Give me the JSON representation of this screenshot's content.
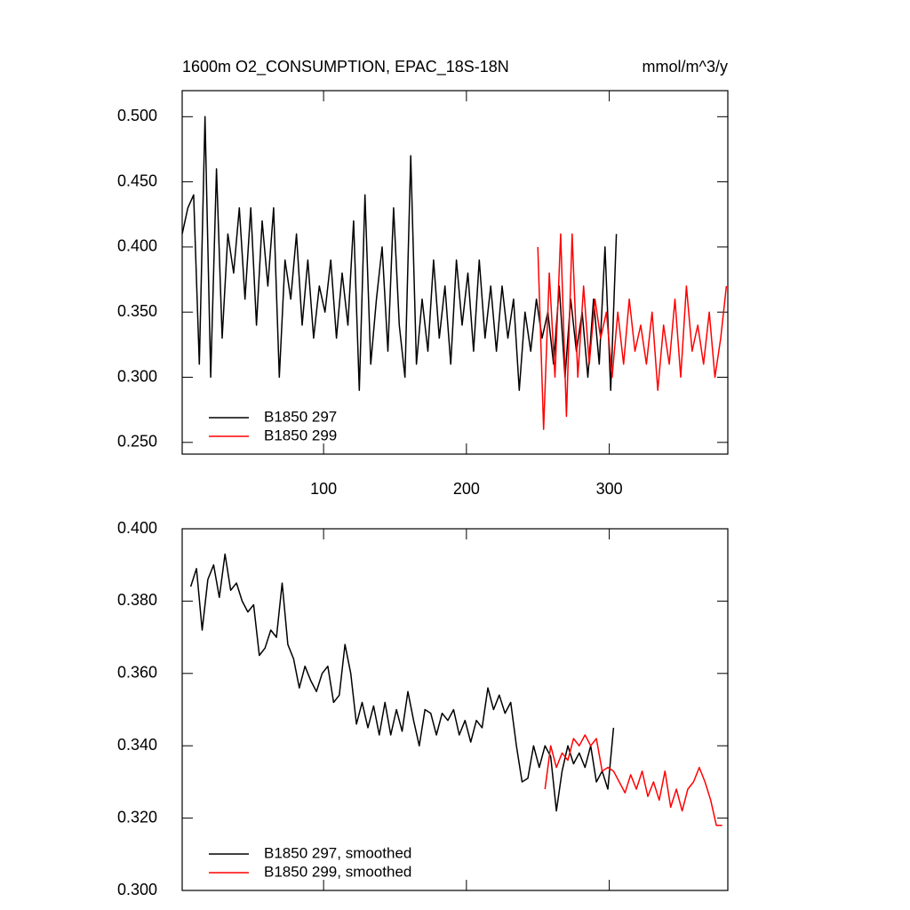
{
  "chart_data": [
    {
      "type": "line",
      "title": "1600m O2_CONSUMPTION, EPAC_18S-18N",
      "units": "mmol/m^3/y",
      "xlim": [
        1,
        383
      ],
      "xticks": [
        100,
        200,
        300
      ],
      "ylim": [
        0.241,
        0.52
      ],
      "yticks": [
        {
          "value": 0.25,
          "label": "0.250"
        },
        {
          "value": 0.3,
          "label": "0.300"
        },
        {
          "value": 0.35,
          "label": "0.350"
        },
        {
          "value": 0.4,
          "label": "0.400"
        },
        {
          "value": 0.45,
          "label": "0.450"
        },
        {
          "value": 0.5,
          "label": "0.500"
        }
      ],
      "legend": "lower left",
      "series": [
        {
          "name": "B1850 297",
          "color": "#000000",
          "x": [
            1,
            5,
            9,
            13,
            17,
            21,
            25,
            29,
            33,
            37,
            41,
            45,
            49,
            53,
            57,
            61,
            65,
            69,
            73,
            77,
            81,
            85,
            89,
            93,
            97,
            101,
            105,
            109,
            113,
            117,
            121,
            125,
            129,
            133,
            137,
            141,
            145,
            149,
            153,
            157,
            161,
            165,
            169,
            173,
            177,
            181,
            185,
            189,
            193,
            197,
            201,
            205,
            209,
            213,
            217,
            221,
            225,
            229,
            233,
            237,
            241,
            245,
            249,
            253,
            257,
            261,
            265,
            269,
            273,
            277,
            281,
            285,
            289,
            293,
            297,
            301,
            305
          ],
          "values": [
            0.41,
            0.43,
            0.44,
            0.31,
            0.5,
            0.3,
            0.46,
            0.33,
            0.41,
            0.38,
            0.43,
            0.36,
            0.43,
            0.34,
            0.42,
            0.37,
            0.43,
            0.3,
            0.39,
            0.36,
            0.41,
            0.34,
            0.39,
            0.33,
            0.37,
            0.35,
            0.39,
            0.33,
            0.38,
            0.34,
            0.42,
            0.29,
            0.44,
            0.31,
            0.36,
            0.4,
            0.32,
            0.43,
            0.34,
            0.3,
            0.47,
            0.31,
            0.36,
            0.32,
            0.39,
            0.33,
            0.37,
            0.31,
            0.39,
            0.34,
            0.38,
            0.32,
            0.39,
            0.33,
            0.37,
            0.32,
            0.37,
            0.33,
            0.36,
            0.29,
            0.35,
            0.32,
            0.36,
            0.33,
            0.35,
            0.31,
            0.37,
            0.3,
            0.36,
            0.32,
            0.35,
            0.3,
            0.36,
            0.31,
            0.4,
            0.29,
            0.41
          ]
        },
        {
          "name": "B1850 299",
          "color": "#ff0000",
          "x": [
            250,
            254,
            258,
            262,
            266,
            270,
            274,
            278,
            282,
            286,
            290,
            294,
            298,
            302,
            306,
            310,
            314,
            318,
            322,
            326,
            330,
            334,
            338,
            342,
            346,
            350,
            354,
            358,
            362,
            366,
            370,
            374,
            378,
            382
          ],
          "values": [
            0.4,
            0.26,
            0.38,
            0.3,
            0.41,
            0.27,
            0.41,
            0.3,
            0.37,
            0.31,
            0.36,
            0.33,
            0.35,
            0.3,
            0.35,
            0.31,
            0.36,
            0.32,
            0.34,
            0.31,
            0.35,
            0.29,
            0.34,
            0.31,
            0.36,
            0.3,
            0.37,
            0.32,
            0.34,
            0.31,
            0.35,
            0.3,
            0.33,
            0.37
          ]
        }
      ]
    },
    {
      "type": "line",
      "xlim": [
        1,
        383
      ],
      "xticks": [
        100,
        200,
        300
      ],
      "ylim": [
        0.3,
        0.4
      ],
      "yticks": [
        {
          "value": 0.3,
          "label": "0.300"
        },
        {
          "value": 0.32,
          "label": "0.320"
        },
        {
          "value": 0.34,
          "label": "0.340"
        },
        {
          "value": 0.36,
          "label": "0.360"
        },
        {
          "value": 0.38,
          "label": "0.380"
        },
        {
          "value": 0.4,
          "label": "0.400"
        }
      ],
      "legend": "lower left",
      "series": [
        {
          "name": "B1850 297, smoothed",
          "color": "#000000",
          "x": [
            7,
            11,
            15,
            19,
            23,
            27,
            31,
            35,
            39,
            43,
            47,
            51,
            55,
            59,
            63,
            67,
            71,
            75,
            79,
            83,
            87,
            91,
            95,
            99,
            103,
            107,
            111,
            115,
            119,
            123,
            127,
            131,
            135,
            139,
            143,
            147,
            151,
            155,
            159,
            163,
            167,
            171,
            175,
            179,
            183,
            187,
            191,
            195,
            199,
            203,
            207,
            211,
            215,
            219,
            223,
            227,
            231,
            235,
            239,
            243,
            247,
            251,
            255,
            259,
            263,
            267,
            271,
            275,
            279,
            283,
            287,
            291,
            295,
            299,
            303
          ],
          "values": [
            0.384,
            0.389,
            0.372,
            0.386,
            0.39,
            0.381,
            0.393,
            0.383,
            0.385,
            0.38,
            0.377,
            0.379,
            0.365,
            0.367,
            0.372,
            0.37,
            0.385,
            0.368,
            0.364,
            0.356,
            0.362,
            0.358,
            0.355,
            0.36,
            0.362,
            0.352,
            0.354,
            0.368,
            0.36,
            0.346,
            0.352,
            0.345,
            0.351,
            0.343,
            0.352,
            0.343,
            0.35,
            0.344,
            0.355,
            0.347,
            0.34,
            0.35,
            0.349,
            0.343,
            0.349,
            0.347,
            0.35,
            0.343,
            0.347,
            0.341,
            0.347,
            0.345,
            0.356,
            0.35,
            0.354,
            0.349,
            0.352,
            0.34,
            0.33,
            0.331,
            0.34,
            0.334,
            0.34,
            0.337,
            0.322,
            0.333,
            0.34,
            0.335,
            0.338,
            0.334,
            0.34,
            0.33,
            0.333,
            0.328,
            0.345
          ]
        },
        {
          "name": "B1850 299, smoothed",
          "color": "#ff0000",
          "x": [
            255,
            259,
            263,
            267,
            271,
            275,
            279,
            283,
            287,
            291,
            295,
            299,
            303,
            307,
            311,
            315,
            319,
            323,
            327,
            331,
            335,
            339,
            343,
            347,
            351,
            355,
            359,
            363,
            367,
            371,
            375,
            379
          ],
          "values": [
            0.328,
            0.34,
            0.334,
            0.338,
            0.336,
            0.342,
            0.34,
            0.343,
            0.34,
            0.342,
            0.333,
            0.334,
            0.333,
            0.33,
            0.327,
            0.332,
            0.328,
            0.333,
            0.326,
            0.33,
            0.325,
            0.333,
            0.323,
            0.328,
            0.322,
            0.328,
            0.33,
            0.334,
            0.33,
            0.325,
            0.318,
            0.318
          ]
        }
      ]
    }
  ]
}
